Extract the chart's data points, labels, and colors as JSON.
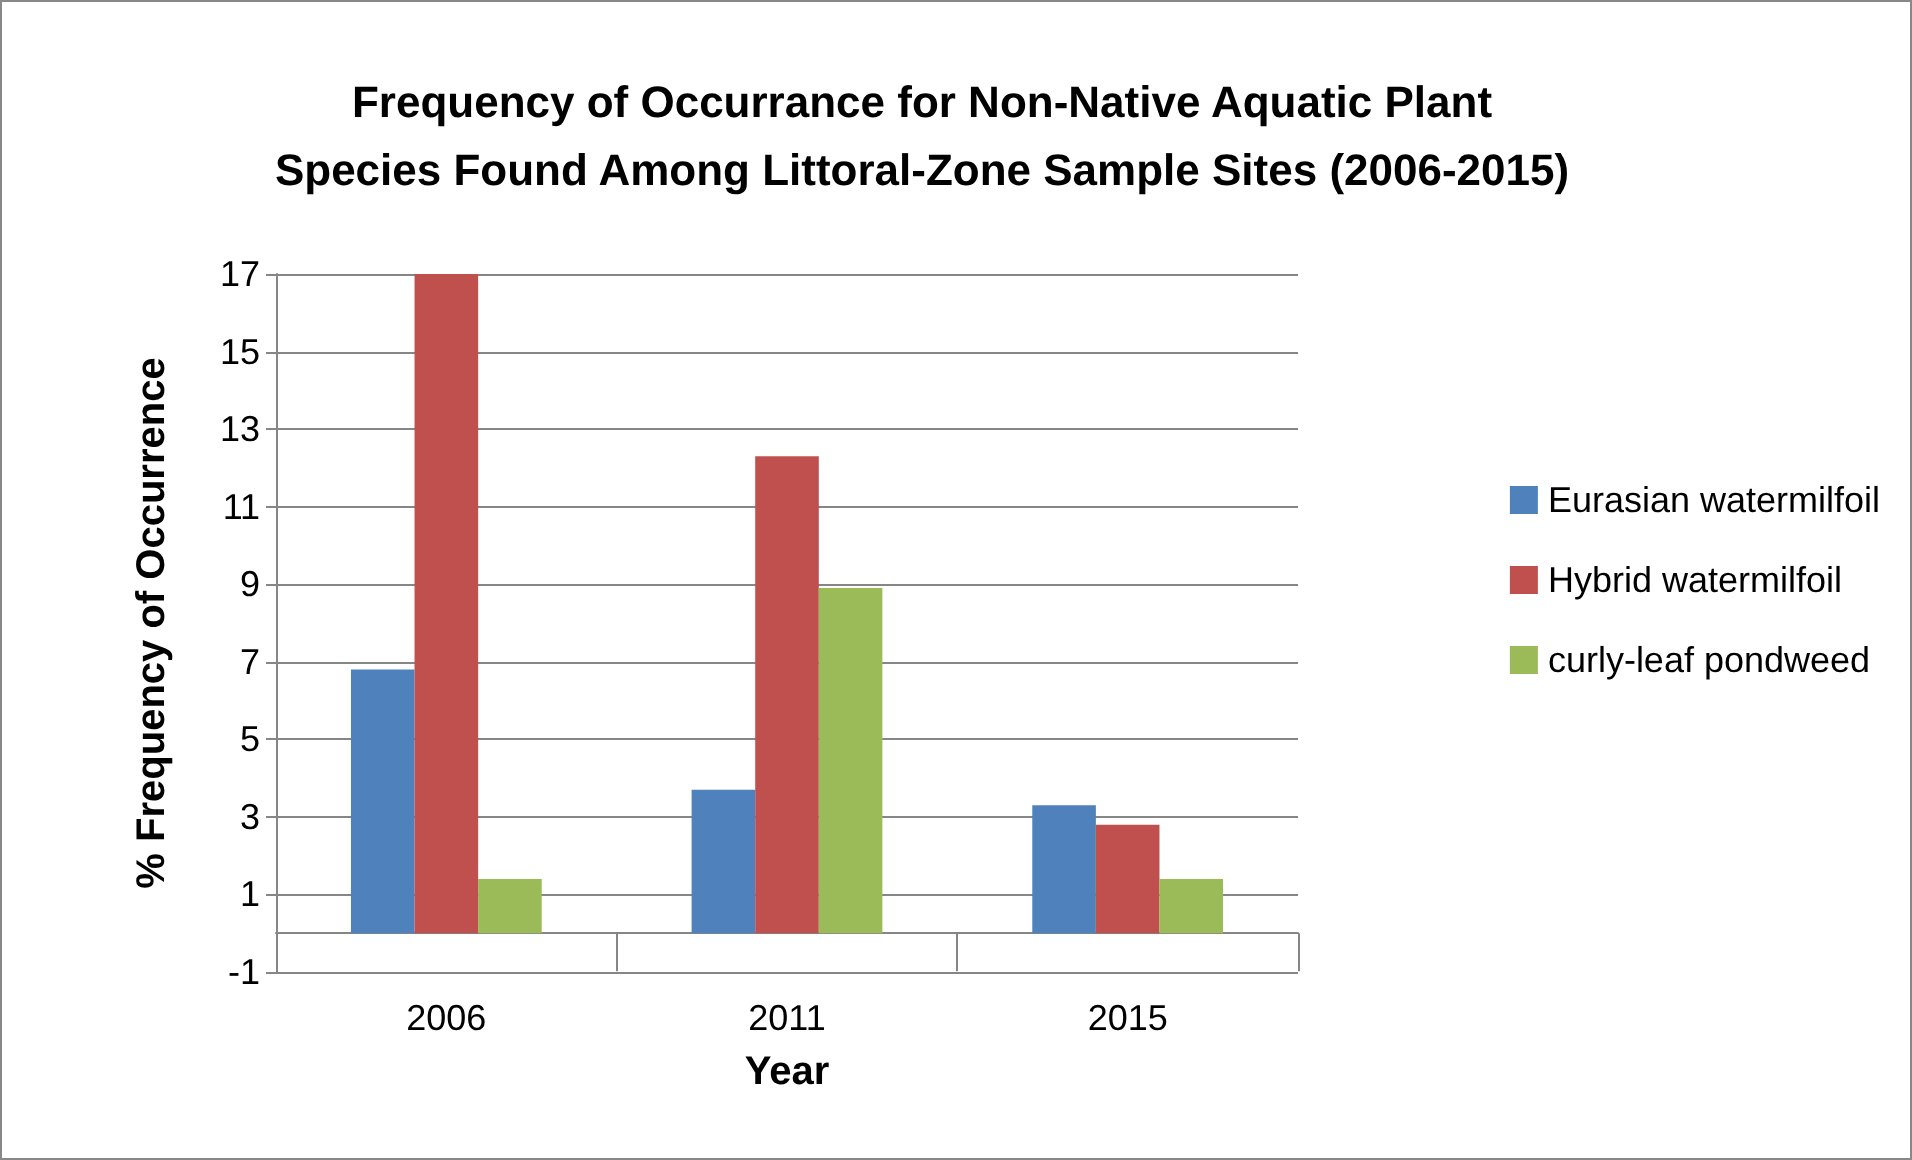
{
  "chart_data": {
    "type": "bar",
    "title": "Frequency of Occurrance for Non-Native Aquatic Plant\nSpecies Found Among Littoral-Zone Sample Sites (2006-2015)",
    "xlabel": "Year",
    "ylabel": "% Frequency of Occurrence",
    "categories": [
      "2006",
      "2011",
      "2015"
    ],
    "series": [
      {
        "name": "Eurasian watermilfoil",
        "color": "#4f81bd",
        "values": [
          6.8,
          3.7,
          3.3
        ]
      },
      {
        "name": "Hybrid watermilfoil",
        "color": "#c0504d",
        "values": [
          17,
          12.3,
          2.8
        ]
      },
      {
        "name": "curly-leaf pondweed",
        "color": "#9bbb59",
        "values": [
          1.4,
          8.9,
          1.4
        ]
      }
    ],
    "ylim": [
      -1,
      17
    ],
    "yticks": [
      -1,
      1,
      3,
      5,
      7,
      9,
      11,
      13,
      15,
      17
    ],
    "grid": "y",
    "legend": "right"
  }
}
